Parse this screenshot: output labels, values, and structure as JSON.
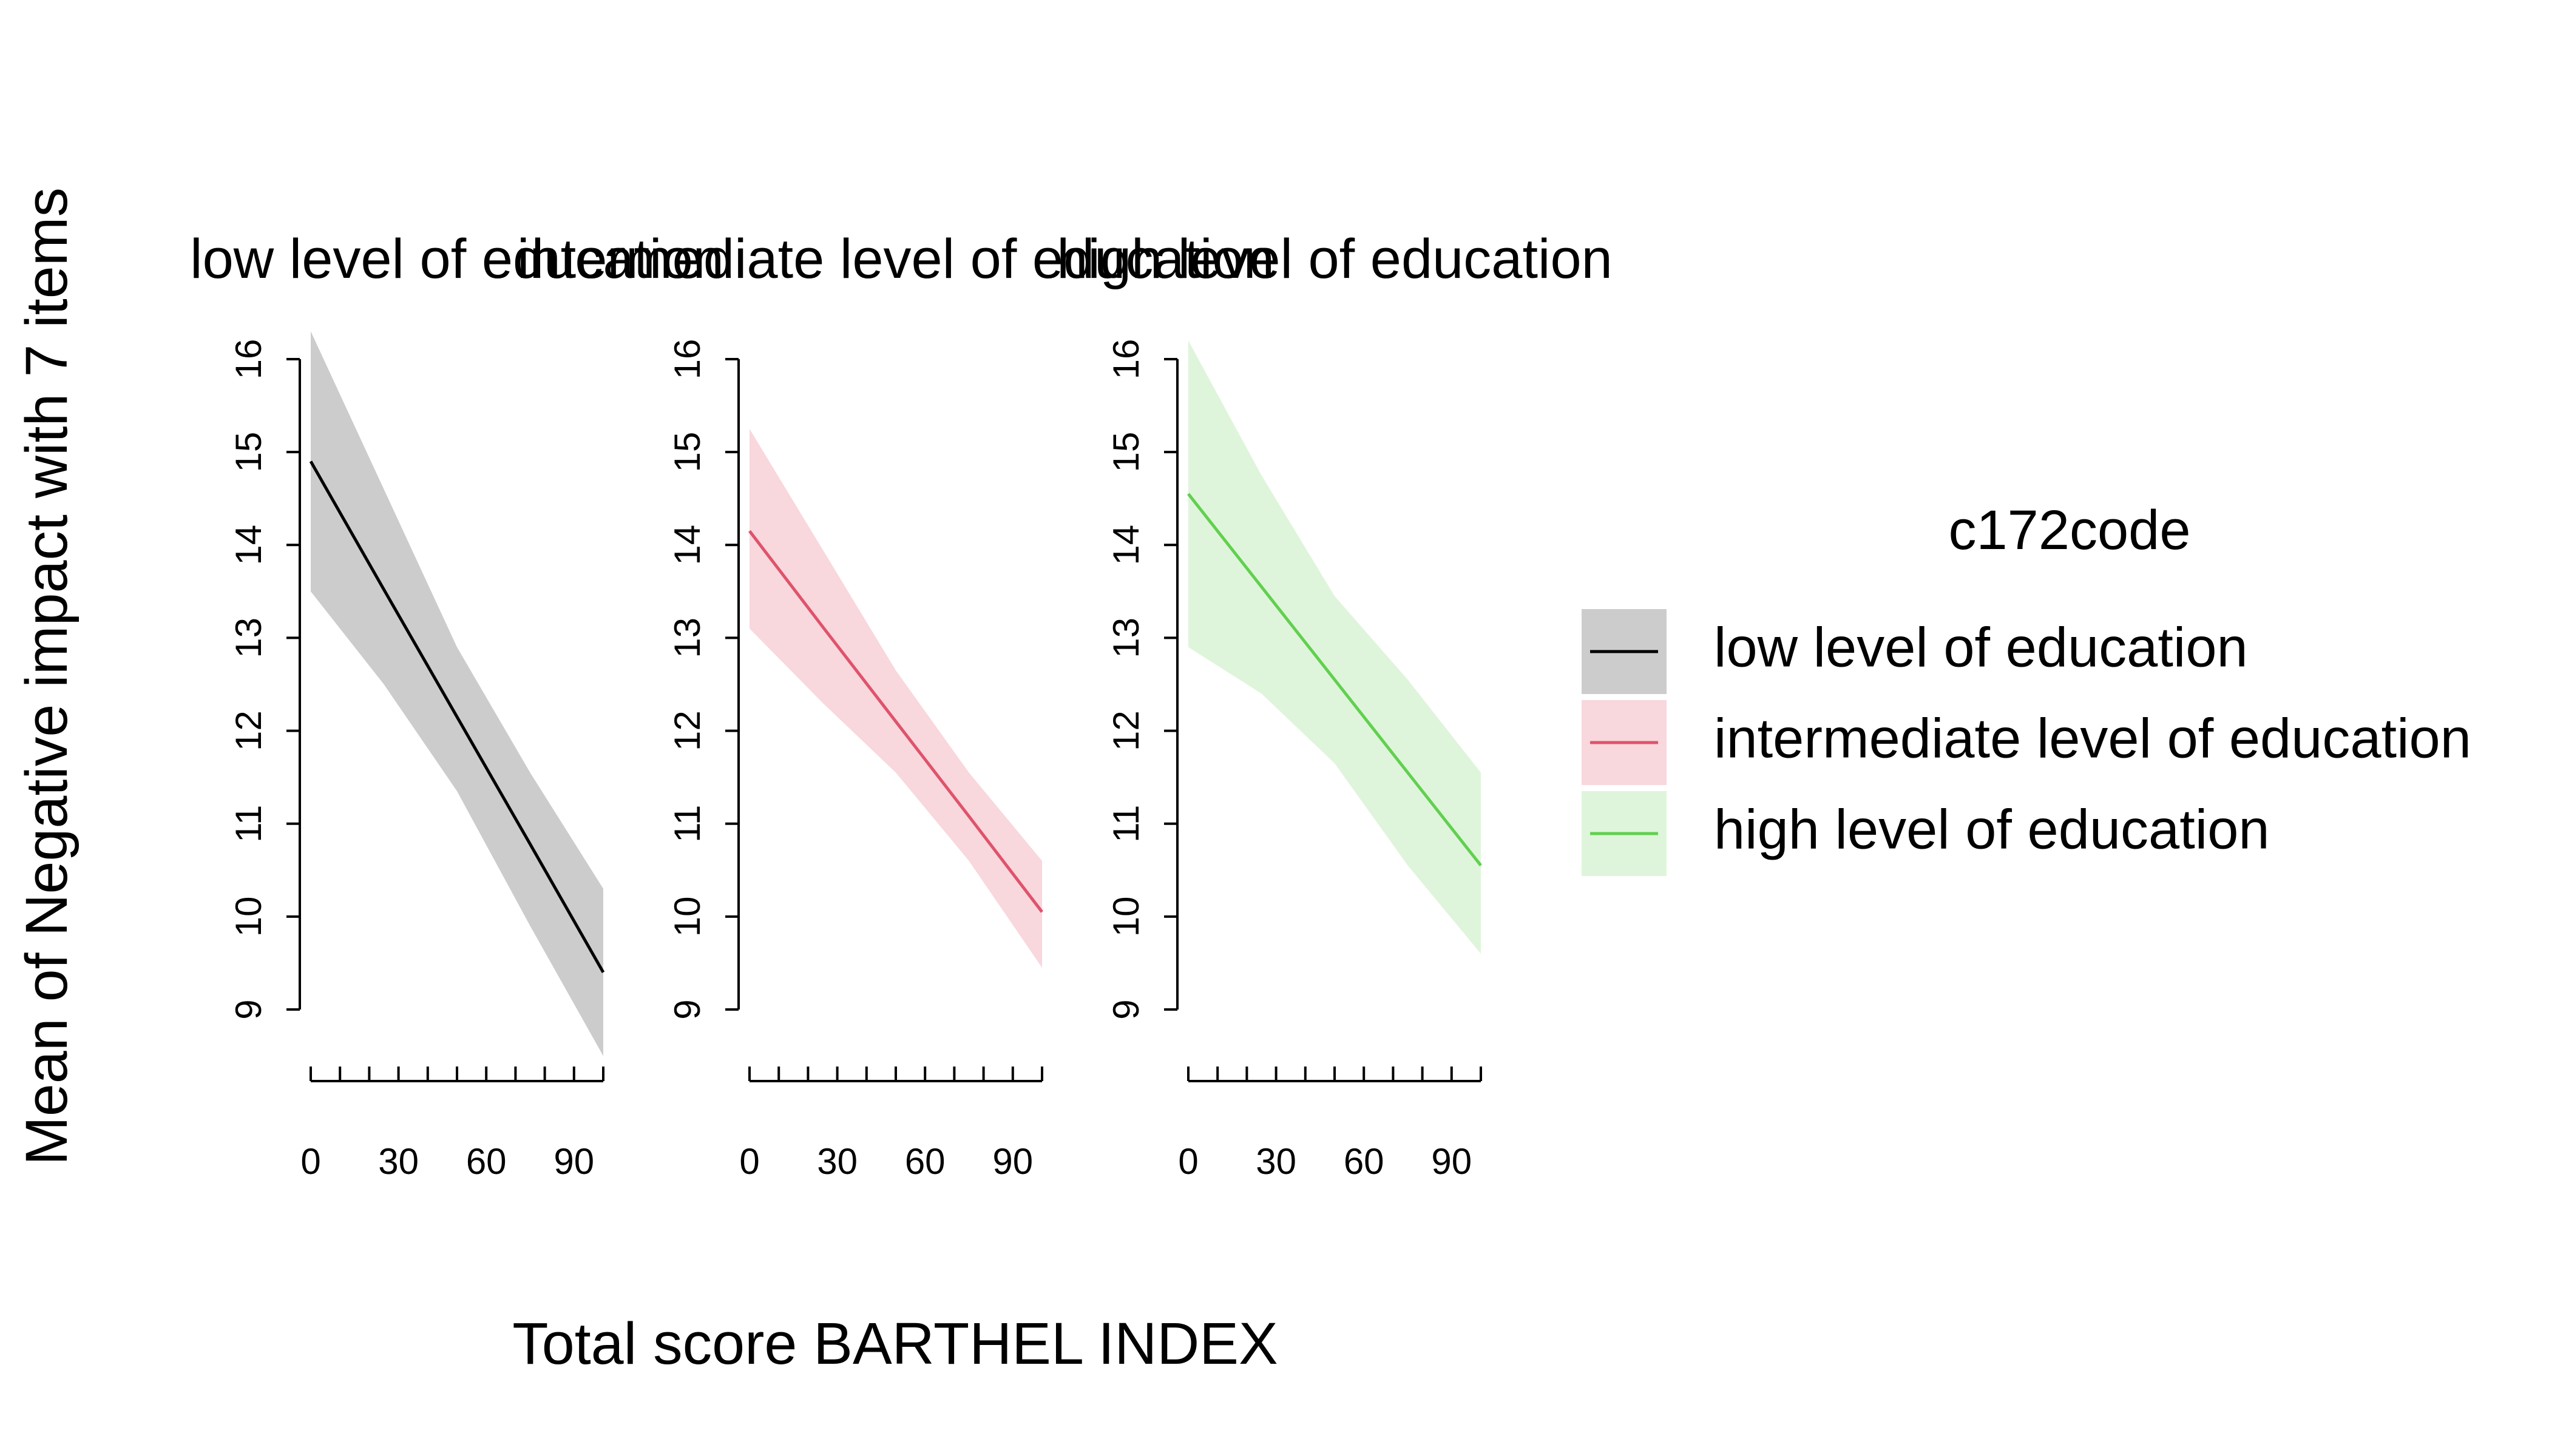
{
  "chart_data": {
    "type": "line",
    "xlabel": "Total score BARTHEL INDEX",
    "ylabel": "Mean of Negative impact with 7 items",
    "xlim": [
      0,
      100
    ],
    "ylim": [
      9,
      16
    ],
    "x_ticks": [
      0,
      30,
      60,
      90
    ],
    "y_ticks": [
      9,
      10,
      11,
      12,
      13,
      14,
      15,
      16
    ],
    "legend": {
      "title": "c172code",
      "position": "right",
      "entries": [
        {
          "label": "low level of education",
          "color": "#000000",
          "fill": "#cccccc"
        },
        {
          "label": "intermediate level of education",
          "color": "#DF536B",
          "fill": "#f8d7dd"
        },
        {
          "label": "high level of education",
          "color": "#61D04F",
          "fill": "#dff5db"
        }
      ]
    },
    "panels": [
      {
        "title": "low level of education",
        "line_color": "#000000",
        "band_color": "#cccccc",
        "x": [
          0,
          25,
          50,
          75,
          100
        ],
        "fit": [
          14.9,
          13.52,
          12.15,
          10.78,
          9.4
        ],
        "lower": [
          13.5,
          12.5,
          11.35,
          9.9,
          8.5
        ],
        "upper": [
          16.3,
          14.6,
          12.9,
          11.55,
          10.3
        ]
      },
      {
        "title": "intermediate level of education",
        "line_color": "#DF536B",
        "band_color": "#f8d7dd",
        "x": [
          0,
          25,
          50,
          75,
          100
        ],
        "fit": [
          14.15,
          13.12,
          12.1,
          11.08,
          10.05
        ],
        "lower": [
          13.1,
          12.3,
          11.55,
          10.6,
          9.45
        ],
        "upper": [
          15.25,
          13.95,
          12.65,
          11.55,
          10.6
        ]
      },
      {
        "title": "high level of education",
        "line_color": "#61D04F",
        "band_color": "#dff5db",
        "x": [
          0,
          25,
          50,
          75,
          100
        ],
        "fit": [
          14.55,
          13.55,
          12.55,
          11.55,
          10.55
        ],
        "lower": [
          12.9,
          12.4,
          11.65,
          10.55,
          9.6
        ],
        "upper": [
          16.2,
          14.75,
          13.45,
          12.55,
          11.55
        ]
      }
    ]
  }
}
